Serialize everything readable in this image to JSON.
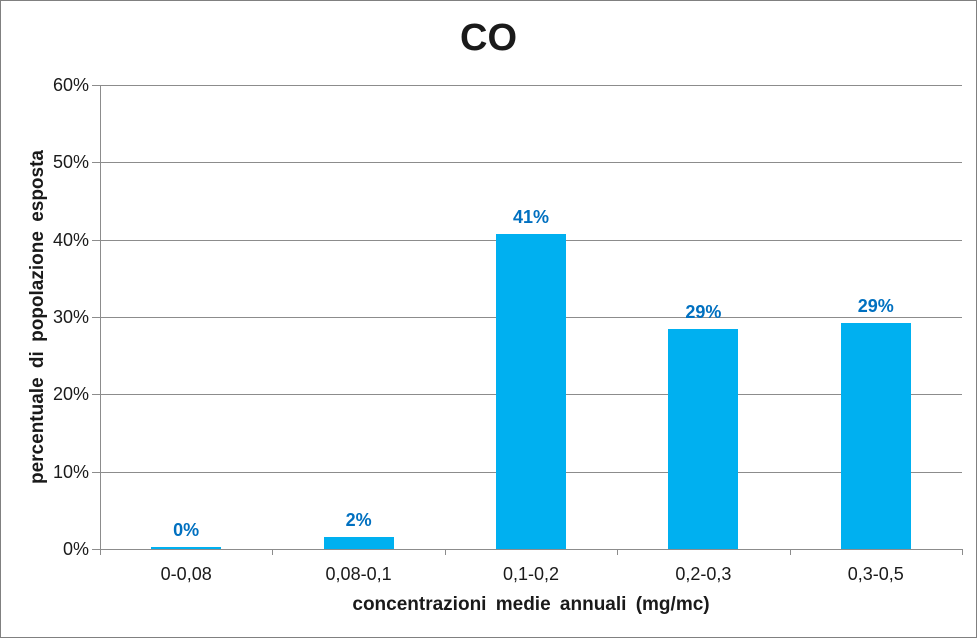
{
  "frame": {
    "background": "#FFFFFF",
    "border_color": "#808080"
  },
  "chart_data": {
    "type": "bar",
    "title": "CO",
    "categories": [
      "0-0,08",
      "0,08-0,1",
      "0,1-0,2",
      "0,2-0,3",
      "0,3-0,5"
    ],
    "values": [
      0.3,
      1.5,
      40.7,
      28.5,
      29.2
    ],
    "bar_labels": [
      "0%",
      "2%",
      "41%",
      "29%",
      "29%"
    ],
    "xlabel": "concentrazioni medie annuali (mg/mc)",
    "ylabel": "percentuale di popolazione esposta",
    "ylim": [
      0,
      60
    ],
    "ytick_step": 10,
    "ytick_labels": [
      "0%",
      "10%",
      "20%",
      "30%",
      "40%",
      "50%",
      "60%"
    ],
    "grid": true,
    "legend": "none",
    "colors": {
      "bar_fill": "#00B0F0",
      "bar_label": "#0070C0",
      "grid_line": "#8C8C8C",
      "axis_line": "#8C8C8C",
      "text": "#1A1A1A"
    }
  }
}
